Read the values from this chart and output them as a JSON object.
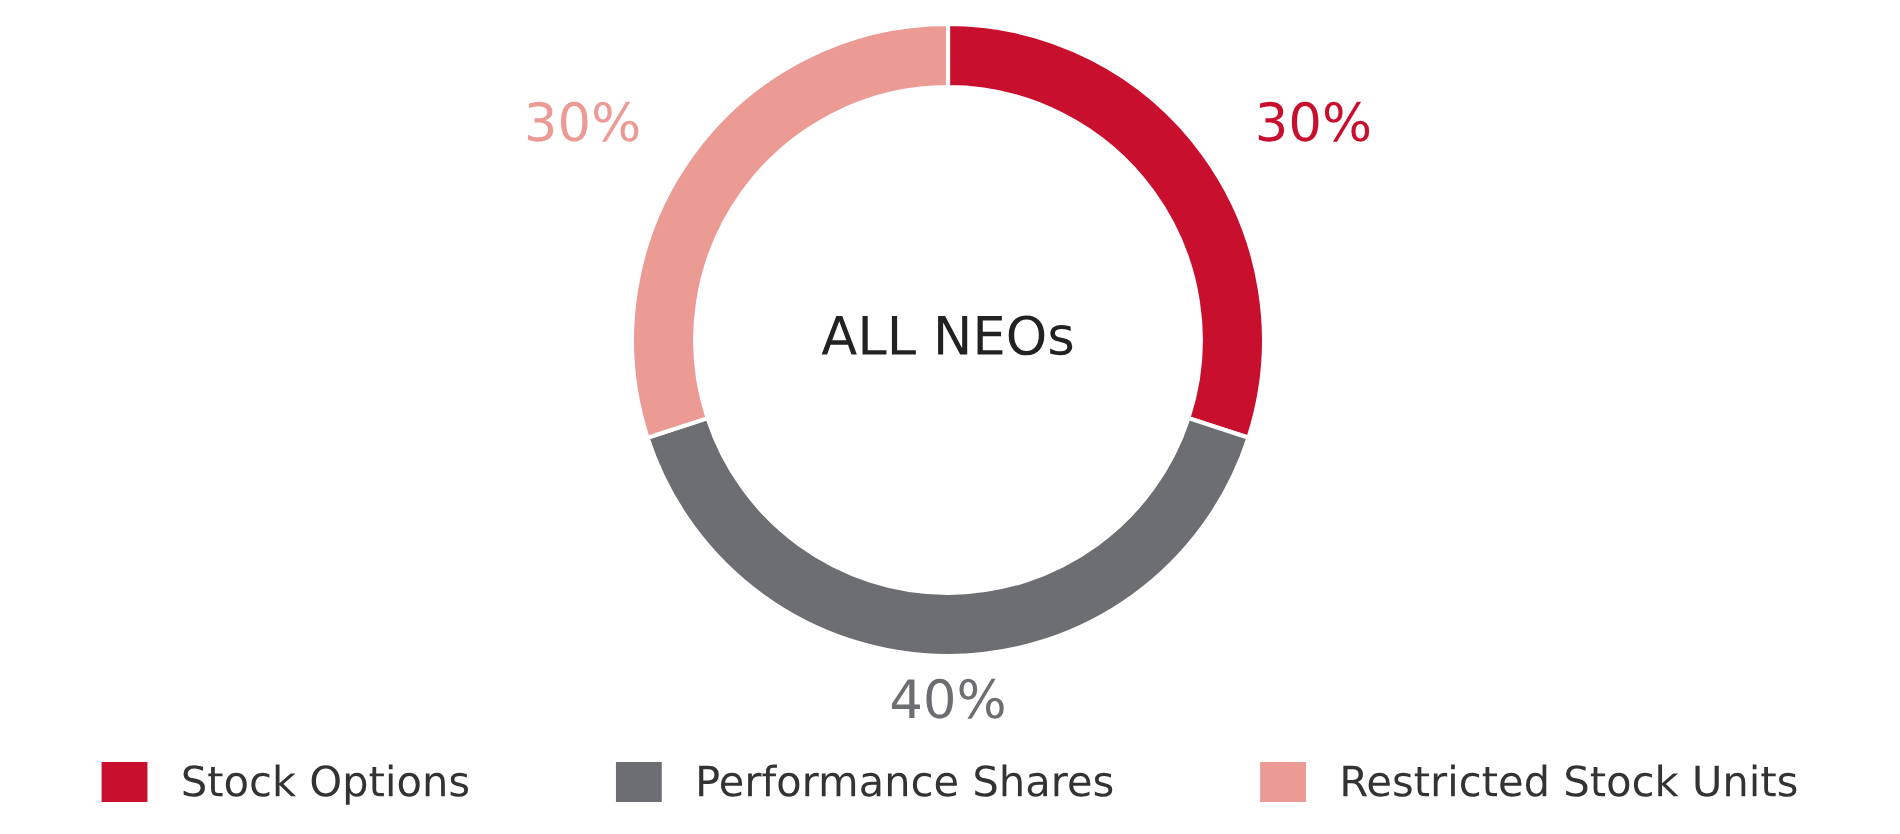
{
  "chart_data": {
    "type": "donut",
    "title": "ALL NEOs",
    "categories": [
      "Stock Options",
      "Performance Shares",
      "Restricted Stock Units"
    ],
    "values": [
      30,
      40,
      30
    ],
    "colors": [
      "#c8102e",
      "#6d6e71",
      "#eb9a94"
    ],
    "value_labels": [
      "30%",
      "40%",
      "30%"
    ],
    "legend": "bottom"
  }
}
